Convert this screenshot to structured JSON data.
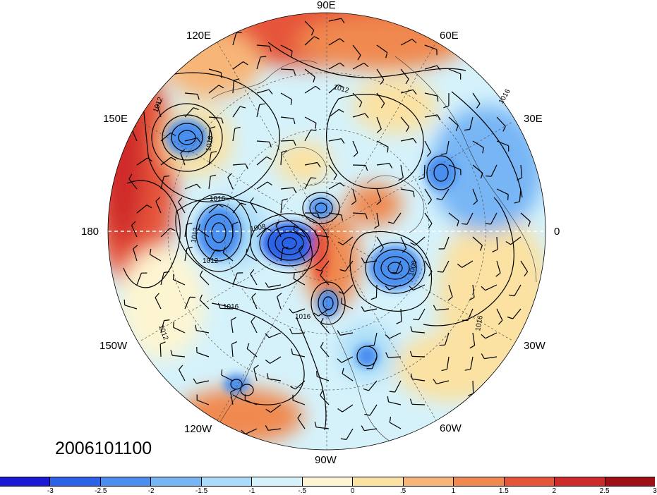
{
  "map": {
    "date_label": "2006101100",
    "longitude_labels": [
      {
        "id": "90e",
        "text": "90E"
      },
      {
        "id": "60e",
        "text": "60E"
      },
      {
        "id": "30e",
        "text": "30E"
      },
      {
        "id": "0",
        "text": "0"
      },
      {
        "id": "30w",
        "text": "30W"
      },
      {
        "id": "60w",
        "text": "60W"
      },
      {
        "id": "90w",
        "text": "90W"
      },
      {
        "id": "120w",
        "text": "120W"
      },
      {
        "id": "150w",
        "text": "150W"
      },
      {
        "id": "180",
        "text": "180"
      },
      {
        "id": "150e",
        "text": "150E"
      },
      {
        "id": "120e",
        "text": "120E"
      }
    ],
    "contour_labels": [
      "1012",
      "1016",
      "1012",
      "1016",
      "1012",
      "1008",
      "1008",
      "1016",
      "1012",
      "1016",
      "1012",
      "1016",
      "1016"
    ]
  },
  "colorbar": {
    "ticks": [
      "-3",
      "-2.5",
      "-2",
      "-1.5",
      "-1",
      "-.5",
      "0",
      ".5",
      "1",
      "1.5",
      "2",
      "2.5",
      "3"
    ],
    "colors": [
      "#1a1ad6",
      "#2a62e8",
      "#4a8ff0",
      "#77b5f5",
      "#a9dcf8",
      "#d5f2fb",
      "#fdf5d2",
      "#fbe1a2",
      "#f7b678",
      "#f0894f",
      "#e6543a",
      "#cf2a2a",
      "#9e1015"
    ]
  }
}
